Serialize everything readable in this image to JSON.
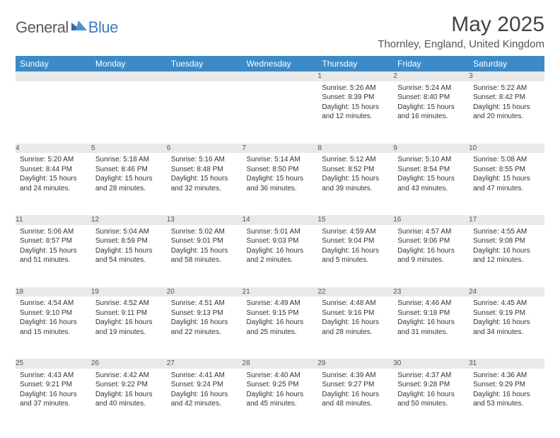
{
  "logo": {
    "word1": "General",
    "word2": "Blue"
  },
  "title": "May 2025",
  "location": "Thornley, England, United Kingdom",
  "day_headers": [
    "Sunday",
    "Monday",
    "Tuesday",
    "Wednesday",
    "Thursday",
    "Friday",
    "Saturday"
  ],
  "colors": {
    "header_bg": "#3b8bc9",
    "header_text": "#ffffff",
    "daynum_bg": "#e9e9e9",
    "daynum_border": "#7a7a7a",
    "body_text": "#333333",
    "logo_gray": "#5a5a5a",
    "logo_blue": "#3b7bbf"
  },
  "typography": {
    "title_fontsize": 30,
    "location_fontsize": 15,
    "header_fontsize": 12,
    "daynum_fontsize": 11,
    "cell_fontsize": 10
  },
  "weeks": [
    [
      null,
      null,
      null,
      null,
      {
        "num": "1",
        "sunrise": "Sunrise: 5:26 AM",
        "sunset": "Sunset: 8:39 PM",
        "daylight1": "Daylight: 15 hours",
        "daylight2": "and 12 minutes."
      },
      {
        "num": "2",
        "sunrise": "Sunrise: 5:24 AM",
        "sunset": "Sunset: 8:40 PM",
        "daylight1": "Daylight: 15 hours",
        "daylight2": "and 16 minutes."
      },
      {
        "num": "3",
        "sunrise": "Sunrise: 5:22 AM",
        "sunset": "Sunset: 8:42 PM",
        "daylight1": "Daylight: 15 hours",
        "daylight2": "and 20 minutes."
      }
    ],
    [
      {
        "num": "4",
        "sunrise": "Sunrise: 5:20 AM",
        "sunset": "Sunset: 8:44 PM",
        "daylight1": "Daylight: 15 hours",
        "daylight2": "and 24 minutes."
      },
      {
        "num": "5",
        "sunrise": "Sunrise: 5:18 AM",
        "sunset": "Sunset: 8:46 PM",
        "daylight1": "Daylight: 15 hours",
        "daylight2": "and 28 minutes."
      },
      {
        "num": "6",
        "sunrise": "Sunrise: 5:16 AM",
        "sunset": "Sunset: 8:48 PM",
        "daylight1": "Daylight: 15 hours",
        "daylight2": "and 32 minutes."
      },
      {
        "num": "7",
        "sunrise": "Sunrise: 5:14 AM",
        "sunset": "Sunset: 8:50 PM",
        "daylight1": "Daylight: 15 hours",
        "daylight2": "and 36 minutes."
      },
      {
        "num": "8",
        "sunrise": "Sunrise: 5:12 AM",
        "sunset": "Sunset: 8:52 PM",
        "daylight1": "Daylight: 15 hours",
        "daylight2": "and 39 minutes."
      },
      {
        "num": "9",
        "sunrise": "Sunrise: 5:10 AM",
        "sunset": "Sunset: 8:54 PM",
        "daylight1": "Daylight: 15 hours",
        "daylight2": "and 43 minutes."
      },
      {
        "num": "10",
        "sunrise": "Sunrise: 5:08 AM",
        "sunset": "Sunset: 8:55 PM",
        "daylight1": "Daylight: 15 hours",
        "daylight2": "and 47 minutes."
      }
    ],
    [
      {
        "num": "11",
        "sunrise": "Sunrise: 5:06 AM",
        "sunset": "Sunset: 8:57 PM",
        "daylight1": "Daylight: 15 hours",
        "daylight2": "and 51 minutes."
      },
      {
        "num": "12",
        "sunrise": "Sunrise: 5:04 AM",
        "sunset": "Sunset: 8:59 PM",
        "daylight1": "Daylight: 15 hours",
        "daylight2": "and 54 minutes."
      },
      {
        "num": "13",
        "sunrise": "Sunrise: 5:02 AM",
        "sunset": "Sunset: 9:01 PM",
        "daylight1": "Daylight: 15 hours",
        "daylight2": "and 58 minutes."
      },
      {
        "num": "14",
        "sunrise": "Sunrise: 5:01 AM",
        "sunset": "Sunset: 9:03 PM",
        "daylight1": "Daylight: 16 hours",
        "daylight2": "and 2 minutes."
      },
      {
        "num": "15",
        "sunrise": "Sunrise: 4:59 AM",
        "sunset": "Sunset: 9:04 PM",
        "daylight1": "Daylight: 16 hours",
        "daylight2": "and 5 minutes."
      },
      {
        "num": "16",
        "sunrise": "Sunrise: 4:57 AM",
        "sunset": "Sunset: 9:06 PM",
        "daylight1": "Daylight: 16 hours",
        "daylight2": "and 9 minutes."
      },
      {
        "num": "17",
        "sunrise": "Sunrise: 4:55 AM",
        "sunset": "Sunset: 9:08 PM",
        "daylight1": "Daylight: 16 hours",
        "daylight2": "and 12 minutes."
      }
    ],
    [
      {
        "num": "18",
        "sunrise": "Sunrise: 4:54 AM",
        "sunset": "Sunset: 9:10 PM",
        "daylight1": "Daylight: 16 hours",
        "daylight2": "and 15 minutes."
      },
      {
        "num": "19",
        "sunrise": "Sunrise: 4:52 AM",
        "sunset": "Sunset: 9:11 PM",
        "daylight1": "Daylight: 16 hours",
        "daylight2": "and 19 minutes."
      },
      {
        "num": "20",
        "sunrise": "Sunrise: 4:51 AM",
        "sunset": "Sunset: 9:13 PM",
        "daylight1": "Daylight: 16 hours",
        "daylight2": "and 22 minutes."
      },
      {
        "num": "21",
        "sunrise": "Sunrise: 4:49 AM",
        "sunset": "Sunset: 9:15 PM",
        "daylight1": "Daylight: 16 hours",
        "daylight2": "and 25 minutes."
      },
      {
        "num": "22",
        "sunrise": "Sunrise: 4:48 AM",
        "sunset": "Sunset: 9:16 PM",
        "daylight1": "Daylight: 16 hours",
        "daylight2": "and 28 minutes."
      },
      {
        "num": "23",
        "sunrise": "Sunrise: 4:46 AM",
        "sunset": "Sunset: 9:18 PM",
        "daylight1": "Daylight: 16 hours",
        "daylight2": "and 31 minutes."
      },
      {
        "num": "24",
        "sunrise": "Sunrise: 4:45 AM",
        "sunset": "Sunset: 9:19 PM",
        "daylight1": "Daylight: 16 hours",
        "daylight2": "and 34 minutes."
      }
    ],
    [
      {
        "num": "25",
        "sunrise": "Sunrise: 4:43 AM",
        "sunset": "Sunset: 9:21 PM",
        "daylight1": "Daylight: 16 hours",
        "daylight2": "and 37 minutes."
      },
      {
        "num": "26",
        "sunrise": "Sunrise: 4:42 AM",
        "sunset": "Sunset: 9:22 PM",
        "daylight1": "Daylight: 16 hours",
        "daylight2": "and 40 minutes."
      },
      {
        "num": "27",
        "sunrise": "Sunrise: 4:41 AM",
        "sunset": "Sunset: 9:24 PM",
        "daylight1": "Daylight: 16 hours",
        "daylight2": "and 42 minutes."
      },
      {
        "num": "28",
        "sunrise": "Sunrise: 4:40 AM",
        "sunset": "Sunset: 9:25 PM",
        "daylight1": "Daylight: 16 hours",
        "daylight2": "and 45 minutes."
      },
      {
        "num": "29",
        "sunrise": "Sunrise: 4:39 AM",
        "sunset": "Sunset: 9:27 PM",
        "daylight1": "Daylight: 16 hours",
        "daylight2": "and 48 minutes."
      },
      {
        "num": "30",
        "sunrise": "Sunrise: 4:37 AM",
        "sunset": "Sunset: 9:28 PM",
        "daylight1": "Daylight: 16 hours",
        "daylight2": "and 50 minutes."
      },
      {
        "num": "31",
        "sunrise": "Sunrise: 4:36 AM",
        "sunset": "Sunset: 9:29 PM",
        "daylight1": "Daylight: 16 hours",
        "daylight2": "and 53 minutes."
      }
    ]
  ]
}
